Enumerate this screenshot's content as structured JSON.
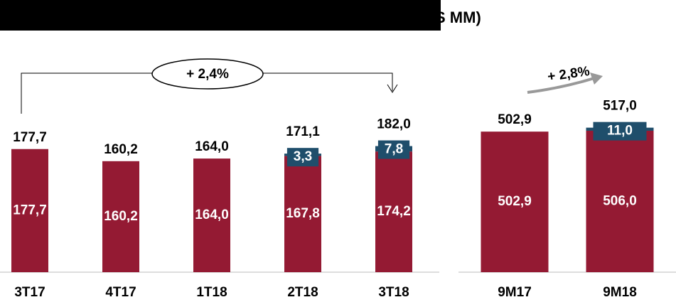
{
  "chart_data": [
    {
      "type": "stacked-bar",
      "title": "S MM)",
      "annotation": "+ 2,4%",
      "categories": [
        "3T17",
        "4T17",
        "1T18",
        "2T18",
        "3T18"
      ],
      "series": [
        {
          "color": "#941a33",
          "values": [
            177.7,
            160.2,
            164.0,
            167.8,
            174.2
          ],
          "value_labels": [
            "177,7",
            "160,2",
            "164,0",
            "167,8",
            "174,2"
          ]
        },
        {
          "color": "#1f4e6b",
          "values": [
            null,
            null,
            null,
            3.3,
            7.8
          ],
          "value_labels": [
            null,
            null,
            null,
            "3,3",
            "7,8"
          ]
        }
      ],
      "totals": [
        177.7,
        160.2,
        164.0,
        171.1,
        182.0
      ],
      "total_labels": [
        "177,7",
        "160,2",
        "164,0",
        "171,1",
        "182,0"
      ],
      "ylim": [
        0,
        200
      ]
    },
    {
      "type": "stacked-bar",
      "annotation": "+ 2,8%",
      "categories": [
        "9M17",
        "9M18"
      ],
      "series": [
        {
          "color": "#941a33",
          "values": [
            502.9,
            506.0
          ],
          "value_labels": [
            "502,9",
            "506,0"
          ]
        },
        {
          "color": "#1f4e6b",
          "values": [
            null,
            11.0
          ],
          "value_labels": [
            null,
            "11,0"
          ]
        }
      ],
      "totals": [
        502.9,
        517.0
      ],
      "total_labels": [
        "502,9",
        "517,0"
      ],
      "ylim": [
        0,
        600
      ]
    }
  ]
}
